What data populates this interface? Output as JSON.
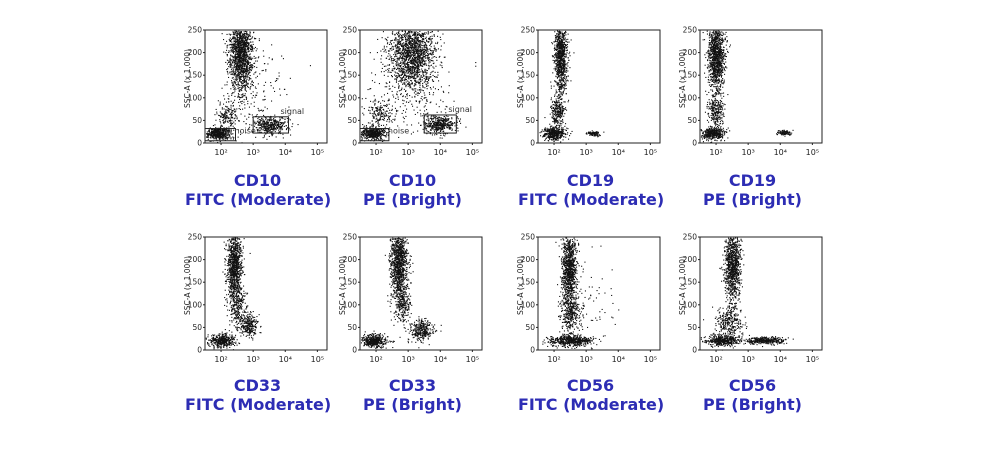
{
  "chart_data": [
    {
      "type": "scatter",
      "marker": "CD10",
      "fluorochrome": "FITC (Moderate)",
      "ylabel": "SSC-A  (x 1,000)",
      "x_scale": "log",
      "x_ticks": [
        "10²",
        "10³",
        "10⁴",
        "10⁵"
      ],
      "y_ticks": [
        "0",
        "50",
        "100",
        "150",
        "200",
        "250"
      ],
      "ylim": [
        0,
        250
      ],
      "clusters": [
        {
          "x_log": 2.6,
          "y": 200,
          "sx": 0.18,
          "sy": 42,
          "n": 1500
        },
        {
          "x_log": 2.2,
          "y": 62,
          "sx": 0.17,
          "sy": 15,
          "n": 160
        },
        {
          "x_log": 1.9,
          "y": 22,
          "sx": 0.2,
          "sy": 7,
          "n": 500
        },
        {
          "x_log": 3.55,
          "y": 40,
          "sx": 0.28,
          "sy": 9,
          "n": 380
        },
        {
          "x_log": 3.0,
          "y": 110,
          "sx": 0.6,
          "sy": 60,
          "n": 200
        }
      ],
      "gates": [
        {
          "label": "noise",
          "x": [
            1.5,
            2.45
          ],
          "y": [
            5,
            32
          ]
        },
        {
          "label": "signal",
          "x": [
            3.0,
            4.1
          ],
          "y": [
            22,
            58
          ]
        }
      ]
    },
    {
      "type": "scatter",
      "marker": "CD10",
      "fluorochrome": "PE (Bright)",
      "ylabel": "SSC-A  (x 1,000)",
      "x_scale": "log",
      "x_ticks": [
        "10²",
        "10³",
        "10⁴",
        "10⁵"
      ],
      "y_ticks": [
        "0",
        "50",
        "100",
        "150",
        "200",
        "250"
      ],
      "ylim": [
        0,
        250
      ],
      "clusters": [
        {
          "x_log": 3.1,
          "y": 200,
          "sx": 0.35,
          "sy": 40,
          "n": 1700
        },
        {
          "x_log": 2.1,
          "y": 65,
          "sx": 0.18,
          "sy": 15,
          "n": 160
        },
        {
          "x_log": 1.9,
          "y": 22,
          "sx": 0.2,
          "sy": 7,
          "n": 450
        },
        {
          "x_log": 3.95,
          "y": 42,
          "sx": 0.25,
          "sy": 10,
          "n": 420
        },
        {
          "x_log": 3.0,
          "y": 120,
          "sx": 0.8,
          "sy": 60,
          "n": 260
        }
      ],
      "gates": [
        {
          "label": "noise",
          "x": [
            1.5,
            2.4
          ],
          "y": [
            5,
            32
          ]
        },
        {
          "label": "signal",
          "x": [
            3.5,
            4.5
          ],
          "y": [
            22,
            62
          ]
        }
      ]
    },
    {
      "type": "scatter",
      "marker": "CD19",
      "fluorochrome": "FITC (Moderate)",
      "ylabel": "SSC-A  (x 1,000)",
      "x_scale": "log",
      "x_ticks": [
        "10²",
        "10³",
        "10⁴",
        "10⁵"
      ],
      "y_ticks": [
        "0",
        "50",
        "100",
        "150",
        "200",
        "250"
      ],
      "ylim": [
        0,
        250
      ],
      "clusters": [
        {
          "x_log": 2.2,
          "y": 190,
          "sx": 0.1,
          "sy": 40,
          "n": 1000
        },
        {
          "x_log": 2.1,
          "y": 70,
          "sx": 0.11,
          "sy": 18,
          "n": 250
        },
        {
          "x_log": 2.0,
          "y": 22,
          "sx": 0.18,
          "sy": 7,
          "n": 420
        },
        {
          "x_log": 3.2,
          "y": 22,
          "sx": 0.1,
          "sy": 3,
          "n": 90
        }
      ],
      "gates": []
    },
    {
      "type": "scatter",
      "marker": "CD19",
      "fluorochrome": "PE (Bright)",
      "ylabel": "SSC-A  (x 1,000)",
      "x_scale": "log",
      "x_ticks": [
        "10²",
        "10³",
        "10⁴",
        "10⁵"
      ],
      "y_ticks": [
        "0",
        "50",
        "100",
        "150",
        "200",
        "250"
      ],
      "ylim": [
        0,
        250
      ],
      "clusters": [
        {
          "x_log": 2.0,
          "y": 195,
          "sx": 0.13,
          "sy": 40,
          "n": 1100
        },
        {
          "x_log": 2.0,
          "y": 72,
          "sx": 0.13,
          "sy": 18,
          "n": 250
        },
        {
          "x_log": 1.9,
          "y": 22,
          "sx": 0.18,
          "sy": 7,
          "n": 420
        },
        {
          "x_log": 4.1,
          "y": 24,
          "sx": 0.1,
          "sy": 3,
          "n": 90
        }
      ],
      "gates": []
    },
    {
      "type": "scatter",
      "marker": "CD33",
      "fluorochrome": "FITC (Moderate)",
      "ylabel": "SSC-A  (x 1,000)",
      "x_scale": "log",
      "x_ticks": [
        "10²",
        "10³",
        "10⁴",
        "10⁵"
      ],
      "y_ticks": [
        "0",
        "50",
        "100",
        "150",
        "200",
        "250"
      ],
      "ylim": [
        0,
        250
      ],
      "clusters": [
        {
          "x_log": 2.4,
          "y": 190,
          "sx": 0.12,
          "sy": 40,
          "n": 1000
        },
        {
          "x_log": 2.5,
          "y": 100,
          "sx": 0.14,
          "sy": 22,
          "n": 250
        },
        {
          "x_log": 2.85,
          "y": 55,
          "sx": 0.15,
          "sy": 12,
          "n": 260
        },
        {
          "x_log": 2.0,
          "y": 22,
          "sx": 0.2,
          "sy": 7,
          "n": 420
        }
      ],
      "gates": []
    },
    {
      "type": "scatter",
      "marker": "CD33",
      "fluorochrome": "PE (Bright)",
      "ylabel": "SSC-A  (x 1,000)",
      "x_scale": "log",
      "x_ticks": [
        "10²",
        "10³",
        "10⁴",
        "10⁵"
      ],
      "y_ticks": [
        "0",
        "50",
        "100",
        "150",
        "200",
        "250"
      ],
      "ylim": [
        0,
        250
      ],
      "clusters": [
        {
          "x_log": 2.7,
          "y": 195,
          "sx": 0.13,
          "sy": 40,
          "n": 1100
        },
        {
          "x_log": 2.8,
          "y": 100,
          "sx": 0.14,
          "sy": 20,
          "n": 230
        },
        {
          "x_log": 3.4,
          "y": 45,
          "sx": 0.2,
          "sy": 12,
          "n": 300
        },
        {
          "x_log": 1.9,
          "y": 22,
          "sx": 0.2,
          "sy": 7,
          "n": 420
        }
      ],
      "gates": []
    },
    {
      "type": "scatter",
      "marker": "CD56",
      "fluorochrome": "FITC (Moderate)",
      "ylabel": "SSC-A  (x 1,000)",
      "x_scale": "log",
      "x_ticks": [
        "10²",
        "10³",
        "10⁴",
        "10⁵"
      ],
      "y_ticks": [
        "0",
        "50",
        "100",
        "150",
        "200",
        "250"
      ],
      "ylim": [
        0,
        250
      ],
      "clusters": [
        {
          "x_log": 2.45,
          "y": 180,
          "sx": 0.12,
          "sy": 45,
          "n": 1000
        },
        {
          "x_log": 2.5,
          "y": 80,
          "sx": 0.15,
          "sy": 22,
          "n": 300
        },
        {
          "x_log": 2.5,
          "y": 22,
          "sx": 0.35,
          "sy": 6,
          "n": 550
        },
        {
          "x_log": 3.0,
          "y": 120,
          "sx": 0.5,
          "sy": 60,
          "n": 80
        }
      ],
      "gates": []
    },
    {
      "type": "scatter",
      "marker": "CD56",
      "fluorochrome": "PE (Bright)",
      "ylabel": "SSC-A  (x 1,000)",
      "x_scale": "log",
      "x_ticks": [
        "10²",
        "10³",
        "10⁴",
        "10⁵"
      ],
      "y_ticks": [
        "0",
        "50",
        "100",
        "150",
        "200",
        "250"
      ],
      "ylim": [
        0,
        250
      ],
      "clusters": [
        {
          "x_log": 2.5,
          "y": 190,
          "sx": 0.12,
          "sy": 42,
          "n": 1000
        },
        {
          "x_log": 2.4,
          "y": 60,
          "sx": 0.2,
          "sy": 18,
          "n": 300
        },
        {
          "x_log": 2.2,
          "y": 22,
          "sx": 0.25,
          "sy": 6,
          "n": 450
        },
        {
          "x_log": 3.5,
          "y": 22,
          "sx": 0.3,
          "sy": 4,
          "n": 350
        }
      ],
      "gates": []
    }
  ]
}
